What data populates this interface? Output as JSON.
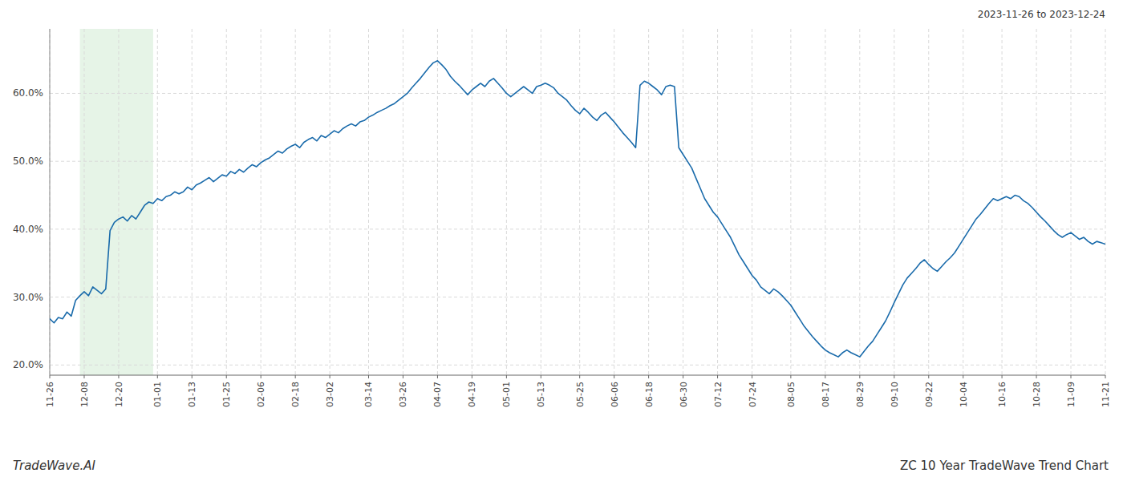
{
  "chart_data": {
    "type": "line",
    "title": "ZC 10 Year TradeWave Trend Chart",
    "subtitle": "2023-11-26 to 2023-12-24",
    "annotations": [
      "TradeWave.AI"
    ],
    "color": "#1a6bab",
    "grid": true,
    "highlight": {
      "start": 7,
      "end": 24,
      "color": "#c8e6c9"
    },
    "ylim": [
      0.185,
      0.695
    ],
    "yticks": [
      {
        "value": 0.2,
        "label": "20.0%"
      },
      {
        "value": 0.3,
        "label": "30.0%"
      },
      {
        "value": 0.4,
        "label": "40.0%"
      },
      {
        "value": 0.5,
        "label": "50.0%"
      },
      {
        "value": 0.6,
        "label": "60.0%"
      }
    ],
    "categories": [
      "11-26",
      null,
      null,
      null,
      null,
      null,
      null,
      null,
      "12-08",
      null,
      null,
      null,
      null,
      null,
      null,
      null,
      "12-20",
      null,
      null,
      null,
      null,
      null,
      null,
      null,
      null,
      "01-01",
      null,
      null,
      null,
      null,
      null,
      null,
      null,
      "01-13",
      null,
      null,
      null,
      null,
      null,
      null,
      null,
      "01-25",
      null,
      null,
      null,
      null,
      null,
      null,
      null,
      "02-06",
      null,
      null,
      null,
      null,
      null,
      null,
      null,
      "02-18",
      null,
      null,
      null,
      null,
      null,
      null,
      null,
      "03-02",
      null,
      null,
      null,
      null,
      null,
      null,
      null,
      null,
      "03-14",
      null,
      null,
      null,
      null,
      null,
      null,
      null,
      "03-26",
      null,
      null,
      null,
      null,
      null,
      null,
      null,
      "04-07",
      null,
      null,
      null,
      null,
      null,
      null,
      null,
      "04-19",
      null,
      null,
      null,
      null,
      null,
      null,
      null,
      "05-01",
      null,
      null,
      null,
      null,
      null,
      null,
      null,
      "05-13",
      null,
      null,
      null,
      null,
      null,
      null,
      null,
      null,
      "05-25",
      null,
      null,
      null,
      null,
      null,
      null,
      null,
      "06-06",
      null,
      null,
      null,
      null,
      null,
      null,
      null,
      "06-18",
      null,
      null,
      null,
      null,
      null,
      null,
      null,
      "06-30",
      null,
      null,
      null,
      null,
      null,
      null,
      null,
      "07-12",
      null,
      null,
      null,
      null,
      null,
      null,
      null,
      "07-24",
      null,
      null,
      null,
      null,
      null,
      null,
      null,
      null,
      "08-05",
      null,
      null,
      null,
      null,
      null,
      null,
      null,
      "08-17",
      null,
      null,
      null,
      null,
      null,
      null,
      null,
      "08-29",
      null,
      null,
      null,
      null,
      null,
      null,
      null,
      "09-10",
      null,
      null,
      null,
      null,
      null,
      null,
      null,
      "09-22",
      null,
      null,
      null,
      null,
      null,
      null,
      null,
      "10-04",
      null,
      null,
      null,
      null,
      null,
      null,
      null,
      null,
      "10-16",
      null,
      null,
      null,
      null,
      null,
      null,
      null,
      "10-28",
      null,
      null,
      null,
      null,
      null,
      null,
      null,
      "11-09",
      null,
      null,
      null,
      null,
      null,
      null,
      null,
      "11-21"
    ],
    "values": [
      0.268,
      0.262,
      0.27,
      0.268,
      0.278,
      0.272,
      0.295,
      0.302,
      0.308,
      0.302,
      0.315,
      0.31,
      0.305,
      0.312,
      0.398,
      0.41,
      0.415,
      0.418,
      0.412,
      0.42,
      0.415,
      0.425,
      0.435,
      0.44,
      0.438,
      0.445,
      0.442,
      0.448,
      0.45,
      0.455,
      0.452,
      0.455,
      0.462,
      0.458,
      0.465,
      0.468,
      0.472,
      0.476,
      0.47,
      0.475,
      0.48,
      0.478,
      0.485,
      0.482,
      0.488,
      0.484,
      0.49,
      0.495,
      0.492,
      0.498,
      0.502,
      0.505,
      0.51,
      0.515,
      0.512,
      0.518,
      0.522,
      0.525,
      0.52,
      0.528,
      0.532,
      0.535,
      0.53,
      0.538,
      0.535,
      0.54,
      0.545,
      0.542,
      0.548,
      0.552,
      0.555,
      0.552,
      0.558,
      0.56,
      0.565,
      0.568,
      0.572,
      0.575,
      0.578,
      0.582,
      0.585,
      0.59,
      0.595,
      0.6,
      0.608,
      0.615,
      0.622,
      0.63,
      0.638,
      0.645,
      0.648,
      0.642,
      0.635,
      0.625,
      0.618,
      0.612,
      0.605,
      0.598,
      0.605,
      0.61,
      0.615,
      0.61,
      0.618,
      0.622,
      0.615,
      0.608,
      0.6,
      0.595,
      0.6,
      0.605,
      0.61,
      0.605,
      0.6,
      0.61,
      0.612,
      0.615,
      0.612,
      0.608,
      0.6,
      0.595,
      0.59,
      0.582,
      0.575,
      0.57,
      0.578,
      0.572,
      0.565,
      0.56,
      0.568,
      0.572,
      0.565,
      0.558,
      0.55,
      0.542,
      0.535,
      0.528,
      0.52,
      0.612,
      0.618,
      0.615,
      0.61,
      0.605,
      0.598,
      0.61,
      0.612,
      0.61,
      0.52,
      0.51,
      0.5,
      0.49,
      0.475,
      0.46,
      0.445,
      0.435,
      0.425,
      0.418,
      0.408,
      0.398,
      0.388,
      0.375,
      0.362,
      0.352,
      0.342,
      0.332,
      0.325,
      0.315,
      0.31,
      0.305,
      0.312,
      0.308,
      0.302,
      0.295,
      0.288,
      0.278,
      0.268,
      0.258,
      0.25,
      0.242,
      0.235,
      0.228,
      0.222,
      0.218,
      0.215,
      0.212,
      0.218,
      0.222,
      0.218,
      0.215,
      0.212,
      0.22,
      0.228,
      0.235,
      0.245,
      0.255,
      0.265,
      0.278,
      0.292,
      0.305,
      0.318,
      0.328,
      0.335,
      0.342,
      0.35,
      0.355,
      0.348,
      0.342,
      0.338,
      0.345,
      0.352,
      0.358,
      0.365,
      0.375,
      0.385,
      0.395,
      0.405,
      0.415,
      0.422,
      0.43,
      0.438,
      0.445,
      0.442,
      0.445,
      0.448,
      0.445,
      0.45,
      0.448,
      0.442,
      0.438,
      0.432,
      0.425,
      0.418,
      0.412,
      0.405,
      0.398,
      0.392,
      0.388,
      0.392,
      0.395,
      0.39,
      0.385,
      0.388,
      0.382,
      0.378,
      0.382,
      0.38,
      0.378
    ]
  }
}
